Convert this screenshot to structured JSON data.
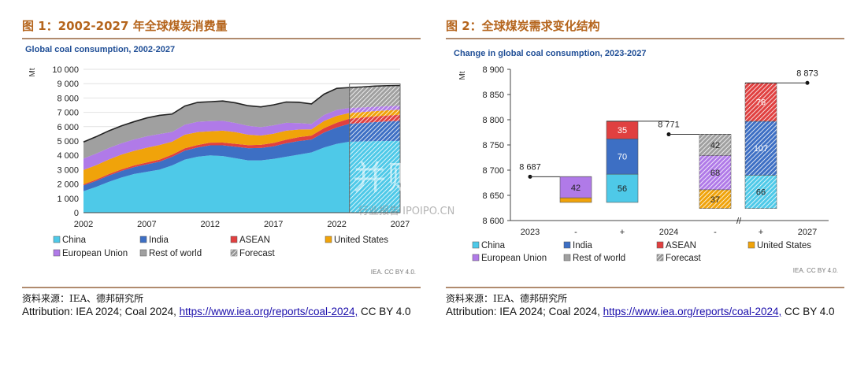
{
  "figure1": {
    "heading": "图 1：2002-2027 年全球煤炭消费量",
    "subtitle": "Global coal consumption, 2002-2027",
    "source": "资料来源：IEA、德邦研究所",
    "attribution_prefix": "Attribution: IEA 2024; Coal 2024, ",
    "attribution_link": "https://www.iea.org/reports/coal-2024,",
    "attribution_suffix": " CC BY 4.0",
    "credit": "IEA. CC BY 4.0."
  },
  "figure2": {
    "heading": "图 2：全球煤炭需求变化结构",
    "subtitle": "Change in global coal consumption, 2023-2027",
    "source": "资料来源：IEA、德邦研究所",
    "attribution_prefix": "Attribution: IEA 2024; Coal 2024, ",
    "attribution_link": "https://www.iea.org/reports/coal-2024,",
    "attribution_suffix": " CC BY 4.0",
    "credit": "IEA. CC BY 4.0."
  },
  "watermark": {
    "text": "并购家",
    "subtext": "行业报告 IPOIPO.CN"
  },
  "chart_data": [
    {
      "type": "area",
      "title": "Global coal consumption, 2002-2027",
      "ylabel": "Mt",
      "ylim": [
        0,
        10000
      ],
      "yticks": [
        0,
        1000,
        2000,
        3000,
        4000,
        5000,
        6000,
        7000,
        8000,
        9000,
        10000
      ],
      "ytick_labels": [
        "0",
        "1 000",
        "2 000",
        "3 000",
        "4 000",
        "5 000",
        "6 000",
        "7 000",
        "8 000",
        "9 000",
        "10 000"
      ],
      "x": [
        2002,
        2003,
        2004,
        2005,
        2006,
        2007,
        2008,
        2009,
        2010,
        2011,
        2012,
        2013,
        2014,
        2015,
        2016,
        2017,
        2018,
        2019,
        2020,
        2021,
        2022,
        2023,
        2024,
        2025,
        2026,
        2027
      ],
      "xticks": [
        "2002",
        "2007",
        "2012",
        "2017",
        "2022",
        "2027"
      ],
      "forecast_from": 2023,
      "series": [
        {
          "name": "China",
          "color": "#4ec9e8",
          "values": [
            1500,
            1800,
            2150,
            2450,
            2700,
            2850,
            3000,
            3300,
            3700,
            3900,
            4000,
            3950,
            3800,
            3650,
            3650,
            3750,
            3900,
            4050,
            4200,
            4550,
            4800,
            4950,
            4970,
            4990,
            5000,
            5010
          ]
        },
        {
          "name": "India",
          "color": "#3d6fc4",
          "values": [
            400,
            420,
            440,
            460,
            480,
            520,
            560,
            600,
            630,
            650,
            700,
            750,
            800,
            850,
            860,
            880,
            940,
            950,
            900,
            1050,
            1150,
            1250,
            1290,
            1330,
            1370,
            1400
          ]
        },
        {
          "name": "ASEAN",
          "color": "#e04040",
          "values": [
            80,
            90,
            100,
            110,
            120,
            130,
            140,
            150,
            160,
            170,
            180,
            190,
            200,
            210,
            220,
            230,
            250,
            270,
            280,
            300,
            330,
            360,
            380,
            400,
            410,
            420
          ]
        },
        {
          "name": "United States",
          "color": "#f0a30a",
          "values": [
            1000,
            1000,
            1020,
            1030,
            1010,
            1030,
            1020,
            900,
            950,
            900,
            800,
            830,
            820,
            730,
            650,
            650,
            630,
            530,
            430,
            500,
            470,
            400,
            380,
            370,
            360,
            350
          ]
        },
        {
          "name": "European Union",
          "color": "#b07ae8",
          "values": [
            800,
            810,
            800,
            790,
            800,
            800,
            770,
            680,
            700,
            720,
            710,
            690,
            640,
            620,
            590,
            580,
            550,
            450,
            380,
            420,
            420,
            350,
            320,
            300,
            290,
            280
          ]
        },
        {
          "name": "Rest of world",
          "color": "#a0a0a0",
          "values": [
            1150,
            1180,
            1200,
            1220,
            1240,
            1280,
            1300,
            1250,
            1300,
            1350,
            1350,
            1380,
            1400,
            1400,
            1410,
            1430,
            1450,
            1450,
            1400,
            1450,
            1500,
            1420,
            1430,
            1440,
            1430,
            1413
          ]
        }
      ],
      "legend": [
        "China",
        "India",
        "ASEAN",
        "United States",
        "European Union",
        "Rest of world",
        "Forecast"
      ],
      "legend_placement": "bottom"
    },
    {
      "type": "bar",
      "title": "Change in global coal consumption, 2023-2027",
      "ylabel": "Mt",
      "ylim": [
        8600,
        8900
      ],
      "yticks": [
        8600,
        8650,
        8700,
        8750,
        8800,
        8850,
        8900
      ],
      "ytick_labels": [
        "8 600",
        "8 650",
        "8 700",
        "8 750",
        "8 800",
        "8 850",
        "8 900"
      ],
      "categories": [
        "2023",
        "-",
        "+",
        "2024",
        "-",
        "+",
        "2027"
      ],
      "totals": [
        {
          "label": "2023",
          "value": 8687,
          "display": "8 687"
        },
        {
          "label": "2024",
          "value": 8771,
          "display": "8 771"
        },
        {
          "label": "2027",
          "value": 8873,
          "display": "8 873"
        }
      ],
      "steps": [
        {
          "category_index": 1,
          "direction": "decrease",
          "base": 8687,
          "segments": [
            {
              "name": "European Union",
              "value": 42
            },
            {
              "name": "United States",
              "value": 9
            }
          ],
          "forecast": false
        },
        {
          "category_index": 2,
          "direction": "increase",
          "segments": [
            {
              "name": "China",
              "value": 56
            },
            {
              "name": "India",
              "value": 70
            },
            {
              "name": "ASEAN",
              "value": 35
            }
          ],
          "forecast": false
        },
        {
          "category_index": 4,
          "direction": "decrease",
          "base": 8771,
          "segments": [
            {
              "name": "Rest of world",
              "value": 42
            },
            {
              "name": "European Union",
              "value": 68
            },
            {
              "name": "United States",
              "value": 37
            }
          ],
          "forecast": true
        },
        {
          "category_index": 5,
          "direction": "increase",
          "segments": [
            {
              "name": "China",
              "value": 66
            },
            {
              "name": "India",
              "value": 107
            },
            {
              "name": "ASEAN",
              "value": 76
            }
          ],
          "forecast": true
        }
      ],
      "legend": [
        "China",
        "India",
        "ASEAN",
        "United States",
        "European Union",
        "Rest of world",
        "Forecast"
      ],
      "legend_placement": "bottom"
    }
  ]
}
